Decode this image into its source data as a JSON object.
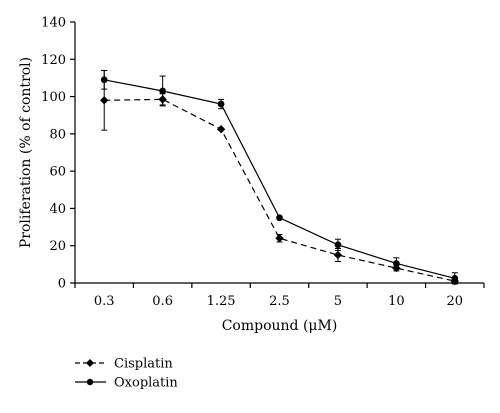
{
  "chart_data": {
    "type": "line",
    "xlabel": "Compound (μM)",
    "ylabel": "Proliferation (% of control)",
    "categories": [
      "0.3",
      "0.6",
      "1.25",
      "2.5",
      "5",
      "10",
      "20"
    ],
    "ylim": [
      0,
      140
    ],
    "yticks": [
      0,
      20,
      40,
      60,
      80,
      100,
      120,
      140
    ],
    "grid": false,
    "legend_position": "bottom-left",
    "series": [
      {
        "name": "Cisplatin",
        "style": "dashed",
        "marker": "diamond",
        "color": "#000000",
        "values": [
          98,
          98.5,
          82.5,
          24,
          15,
          8,
          1
        ],
        "errors": [
          16,
          3,
          0,
          2,
          3.5,
          1.5,
          1.5
        ]
      },
      {
        "name": "Oxoplatin",
        "style": "solid",
        "marker": "circle",
        "color": "#000000",
        "values": [
          109,
          103,
          96,
          35,
          20.5,
          10.5,
          2.5
        ],
        "errors": [
          5,
          8,
          2.5,
          0,
          3,
          3,
          3
        ]
      }
    ]
  }
}
